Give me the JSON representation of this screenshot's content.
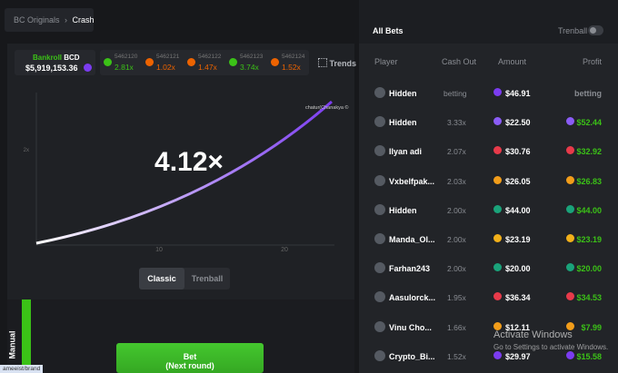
{
  "breadcrumb": {
    "parent": "BC Originals",
    "current": "Crash"
  },
  "bankroll": {
    "label": "Bankroll",
    "currency": "BCD",
    "amount": "$5,919,153.36"
  },
  "history": [
    {
      "id": "5462120",
      "multiplier": "2.81x",
      "color": "#3bc117"
    },
    {
      "id": "5462121",
      "multiplier": "1.02x",
      "color": "#ed6300"
    },
    {
      "id": "5462122",
      "multiplier": "1.47x",
      "color": "#ed6300"
    },
    {
      "id": "5462123",
      "multiplier": "3.74x",
      "color": "#3bc117"
    },
    {
      "id": "5462124",
      "multiplier": "1.52x",
      "color": "#ed6300"
    }
  ],
  "trends": "Trends",
  "game": {
    "multiplier": "4.12×",
    "player_label": "chatur(Chanakya ©",
    "y_label": "2x",
    "x_labels": [
      "10",
      "20"
    ]
  },
  "tabs": [
    "Classic",
    "Trenball"
  ],
  "bet_panel": {
    "mode": "Manual",
    "button": "Bet",
    "button_sub": "(Next round)"
  },
  "status_bar": "ameeist/brand",
  "bets": {
    "title": "All Bets",
    "toggle": "Trenball",
    "columns": [
      "Player",
      "Cash Out",
      "Amount",
      "Profit"
    ],
    "rows": [
      {
        "player": "Hidden",
        "cash_out": "betting",
        "amount": "$46.91",
        "profit": "betting"
      },
      {
        "player": "Hidden",
        "cash_out": "3.33x",
        "amount": "$22.50",
        "profit": "$52.44"
      },
      {
        "player": "Ilyan adi",
        "cash_out": "2.07x",
        "amount": "$30.76",
        "profit": "$32.92"
      },
      {
        "player": "Vxbelfpak...",
        "cash_out": "2.03x",
        "amount": "$26.05",
        "profit": "$26.83"
      },
      {
        "player": "Hidden",
        "cash_out": "2.00x",
        "amount": "$44.00",
        "profit": "$44.00"
      },
      {
        "player": "Manda_Ol...",
        "cash_out": "2.00x",
        "amount": "$23.19",
        "profit": "$23.19"
      },
      {
        "player": "Farhan243",
        "cash_out": "2.00x",
        "amount": "$20.00",
        "profit": "$20.00"
      },
      {
        "player": "Aasulorck...",
        "cash_out": "1.95x",
        "amount": "$36.34",
        "profit": "$34.53"
      },
      {
        "player": "Vinu Cho...",
        "cash_out": "1.66x",
        "amount": "$12.11",
        "profit": "$7.99"
      },
      {
        "player": "Crypto_Bi...",
        "cash_out": "1.52x",
        "amount": "$29.97",
        "profit": "$15.58"
      }
    ]
  },
  "watermark": {
    "title": "Activate Windows",
    "subtitle": "Go to Settings to activate Windows."
  }
}
